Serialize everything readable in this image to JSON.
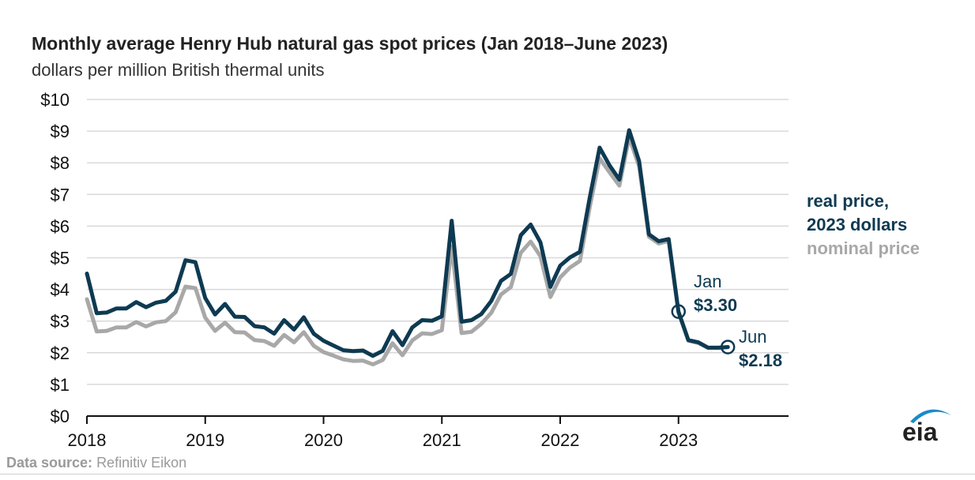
{
  "colors": {
    "real": "#0e3a52",
    "nominal": "#a8a8a8",
    "grid": "#d9d9d9",
    "axis": "#111111",
    "logo": "#1a8bc7"
  },
  "source": {
    "label": "Data source:",
    "value": "Refinitiv Eikon"
  },
  "logo": {
    "text": "eia"
  },
  "chart_data": {
    "type": "line",
    "title": "Monthly average Henry Hub natural gas spot prices (Jan 2018–June 2023)",
    "subtitle": "dollars per million British thermal units",
    "xlabel": "",
    "ylabel": "dollars per million British thermal units",
    "ylim": [
      0,
      10
    ],
    "xlim": [
      2018.0,
      2023.93
    ],
    "yticks": [
      0,
      1,
      2,
      3,
      4,
      5,
      6,
      7,
      8,
      9,
      10
    ],
    "ytick_labels": [
      "$0",
      "$1",
      "$2",
      "$3",
      "$4",
      "$5",
      "$6",
      "$7",
      "$8",
      "$9",
      "$10"
    ],
    "xticks": [
      2018,
      2019,
      2020,
      2021,
      2022,
      2023
    ],
    "xtick_labels": [
      "2018",
      "2019",
      "2020",
      "2021",
      "2022",
      "2023"
    ],
    "grid": true,
    "x": [
      2018.0,
      2018.083,
      2018.167,
      2018.25,
      2018.333,
      2018.417,
      2018.5,
      2018.583,
      2018.667,
      2018.75,
      2018.833,
      2018.917,
      2019.0,
      2019.083,
      2019.167,
      2019.25,
      2019.333,
      2019.417,
      2019.5,
      2019.583,
      2019.667,
      2019.75,
      2019.833,
      2019.917,
      2020.0,
      2020.083,
      2020.167,
      2020.25,
      2020.333,
      2020.417,
      2020.5,
      2020.583,
      2020.667,
      2020.75,
      2020.833,
      2020.917,
      2021.0,
      2021.083,
      2021.167,
      2021.25,
      2021.333,
      2021.417,
      2021.5,
      2021.583,
      2021.667,
      2021.75,
      2021.833,
      2021.917,
      2022.0,
      2022.083,
      2022.167,
      2022.25,
      2022.333,
      2022.417,
      2022.5,
      2022.583,
      2022.667,
      2022.75,
      2022.833,
      2022.917,
      2023.0,
      2023.083,
      2023.167,
      2023.25,
      2023.333,
      2023.417
    ],
    "series": [
      {
        "name": "real price, 2023 dollars",
        "label_lines": [
          "real price,",
          "2023 dollars"
        ],
        "values": [
          4.5,
          3.25,
          3.27,
          3.4,
          3.4,
          3.6,
          3.44,
          3.58,
          3.64,
          3.93,
          4.92,
          4.86,
          3.73,
          3.21,
          3.54,
          3.14,
          3.13,
          2.84,
          2.8,
          2.6,
          3.03,
          2.73,
          3.12,
          2.6,
          2.38,
          2.23,
          2.08,
          2.05,
          2.07,
          1.9,
          2.06,
          2.68,
          2.24,
          2.8,
          3.03,
          3.01,
          3.15,
          6.17,
          2.98,
          3.03,
          3.22,
          3.63,
          4.27,
          4.49,
          5.71,
          6.05,
          5.49,
          4.08,
          4.75,
          5.01,
          5.19,
          6.9,
          8.48,
          7.92,
          7.47,
          9.03,
          8.05,
          5.74,
          5.52,
          5.59,
          3.3,
          2.4,
          2.33,
          2.16,
          2.16,
          2.18
        ]
      },
      {
        "name": "nominal price",
        "label_lines": [
          "nominal price"
        ],
        "values": [
          3.69,
          2.67,
          2.69,
          2.8,
          2.8,
          2.97,
          2.83,
          2.96,
          3.0,
          3.28,
          4.09,
          4.04,
          3.11,
          2.69,
          2.95,
          2.65,
          2.64,
          2.4,
          2.37,
          2.22,
          2.56,
          2.33,
          2.65,
          2.22,
          2.02,
          1.91,
          1.79,
          1.74,
          1.75,
          1.63,
          1.77,
          2.3,
          1.92,
          2.39,
          2.61,
          2.59,
          2.71,
          5.35,
          2.62,
          2.66,
          2.91,
          3.26,
          3.84,
          4.07,
          5.16,
          5.51,
          5.05,
          3.76,
          4.38,
          4.69,
          4.9,
          6.6,
          8.14,
          7.7,
          7.28,
          8.81,
          7.88,
          5.66,
          5.45,
          5.53,
          3.27,
          2.38,
          2.31,
          2.16,
          2.15,
          2.18
        ]
      }
    ],
    "annotations": [
      {
        "month": "Jan",
        "value": "$3.30",
        "x": 2023.0,
        "y": 3.3
      },
      {
        "month": "Jun",
        "value": "$2.18",
        "x": 2023.417,
        "y": 2.18
      }
    ]
  }
}
